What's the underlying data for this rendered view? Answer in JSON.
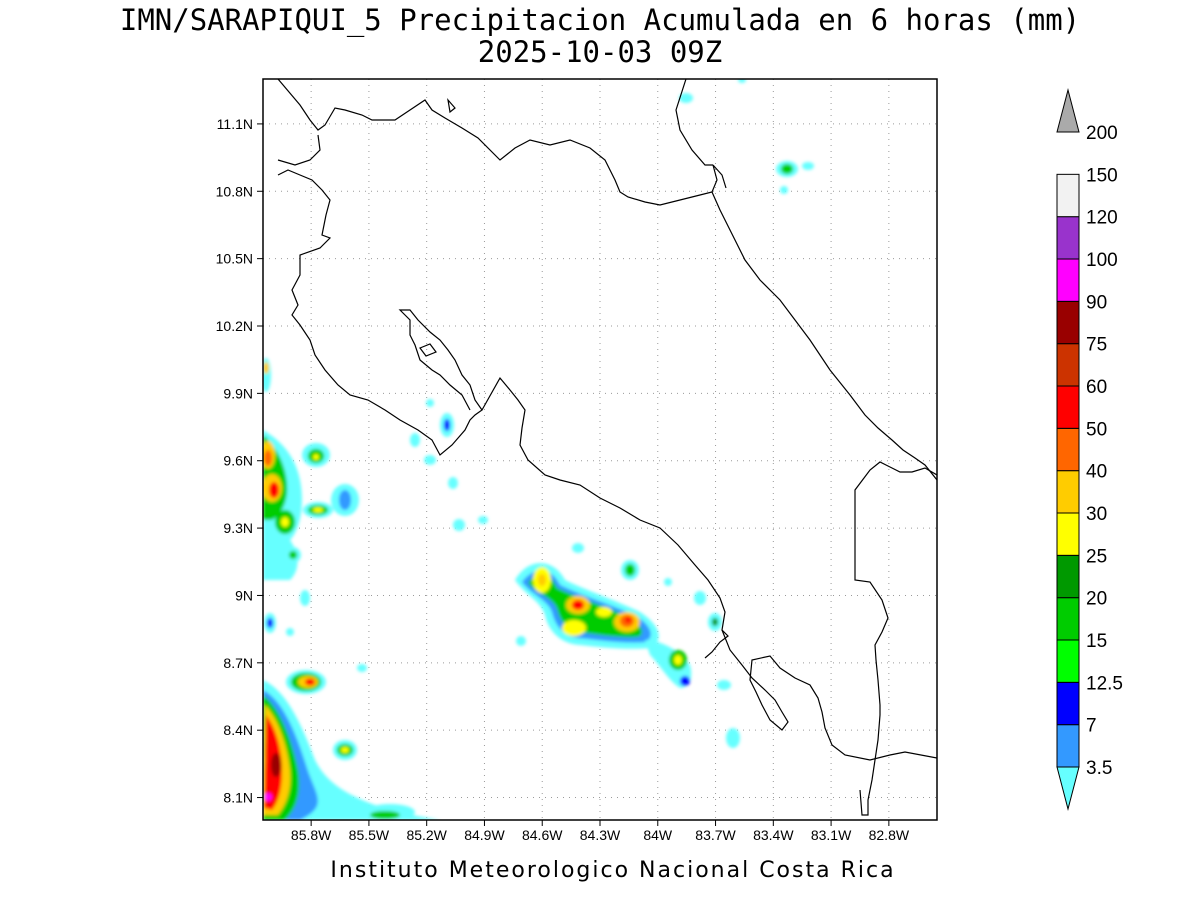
{
  "title": {
    "line1": "IMN/SARAPIQUI_5 Precipitacion Acumulada en 6 horas (mm)",
    "line2": "2025-10-03 09Z"
  },
  "footer": "Instituto Meteorologico Nacional Costa Rica",
  "axes": {
    "lon_labels": [
      "85.8W",
      "85.5W",
      "85.2W",
      "84.9W",
      "84.6W",
      "84.3W",
      "84W",
      "83.7W",
      "83.4W",
      "83.1W",
      "82.8W"
    ],
    "lat_labels": [
      "11.1N",
      "10.8N",
      "10.5N",
      "10.2N",
      "9.9N",
      "9.6N",
      "9.3N",
      "9N",
      "8.7N",
      "8.4N",
      "8.1N"
    ],
    "lon_range": [
      -86.05,
      -82.55
    ],
    "lat_range": [
      8.0,
      11.3
    ]
  },
  "colorbar": {
    "labels": [
      "3.5",
      "7",
      "12.5",
      "15",
      "20",
      "25",
      "30",
      "40",
      "50",
      "60",
      "75",
      "90",
      "100",
      "120",
      "150",
      "200"
    ],
    "colors": [
      "#66ffff",
      "#3399ff",
      "#0000ff",
      "#00ff00",
      "#00cc00",
      "#009900",
      "#ffff00",
      "#ffcc00",
      "#ff6600",
      "#ff0000",
      "#cc3300",
      "#990000",
      "#ff00ff",
      "#9933cc",
      "#f2f2f2",
      "#aaaaaa"
    ]
  },
  "precip_cells": [
    {
      "lon": -84.3,
      "lat": 8.92,
      "value": 50
    },
    {
      "lon": -84.05,
      "lat": 8.88,
      "value": 60
    },
    {
      "lon": -84.45,
      "lat": 9.07,
      "value": 40
    },
    {
      "lon": -84.4,
      "lat": 8.85,
      "value": 40
    },
    {
      "lon": -83.82,
      "lat": 8.72,
      "value": 25
    },
    {
      "lon": -84.02,
      "lat": 9.11,
      "value": 20
    },
    {
      "lon": -85.6,
      "lat": 8.62,
      "value": 75
    },
    {
      "lon": -85.9,
      "lat": 8.3,
      "value": 90
    },
    {
      "lon": -85.92,
      "lat": 9.5,
      "value": 75
    },
    {
      "lon": -85.92,
      "lat": 9.65,
      "value": 60
    },
    {
      "lon": -85.55,
      "lat": 9.38,
      "value": 40
    },
    {
      "lon": -85.85,
      "lat": 9.3,
      "value": 25
    },
    {
      "lon": -85.4,
      "lat": 8.32,
      "value": 25
    },
    {
      "lon": -83.25,
      "lat": 10.9,
      "value": 25
    },
    {
      "lon": -85.05,
      "lat": 9.75,
      "value": 15
    }
  ]
}
